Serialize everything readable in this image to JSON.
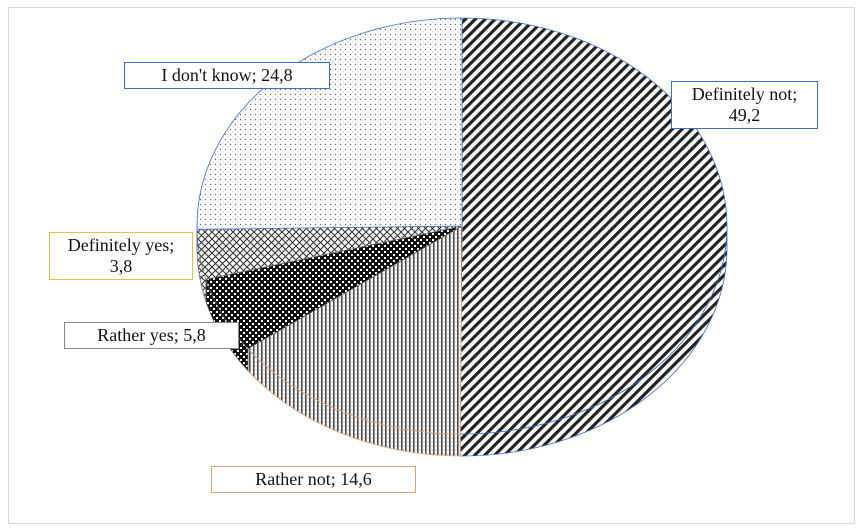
{
  "chart_data": {
    "type": "pie",
    "style": "3d",
    "categories": [
      "Definitely not",
      "Rather not",
      "Rather yes",
      "Definitely yes",
      "I don't know"
    ],
    "values": [
      49.2,
      14.6,
      5.8,
      3.8,
      24.8
    ],
    "data_labels": [
      "Definitely not;\n49,2",
      "Rather not; 14,6",
      "Rather yes; 5,8",
      "Definitely yes;\n3,8",
      "I don't know; 24,8"
    ],
    "label_border_colors": [
      "#3a6fc4",
      "#e0a070",
      "#888888",
      "#e8c040",
      "#3a6fc4"
    ],
    "title": "",
    "legend": "none"
  }
}
